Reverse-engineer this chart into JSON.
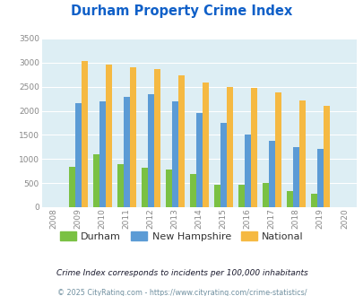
{
  "title": "Durham Property Crime Index",
  "title_color": "#1060c8",
  "years": [
    "08",
    "09",
    "10",
    "11",
    "12",
    "13",
    "14",
    "15",
    "16",
    "17",
    "18",
    "19",
    "20"
  ],
  "data_years": [
    "09",
    "10",
    "11",
    "12",
    "13",
    "14",
    "15",
    "16",
    "17",
    "18",
    "19"
  ],
  "durham": [
    830,
    1090,
    900,
    820,
    780,
    680,
    470,
    460,
    510,
    340,
    280
  ],
  "new_hampshire": [
    2150,
    2190,
    2290,
    2350,
    2190,
    1960,
    1750,
    1500,
    1380,
    1240,
    1210
  ],
  "national": [
    3040,
    2960,
    2910,
    2870,
    2730,
    2590,
    2500,
    2480,
    2380,
    2210,
    2110
  ],
  "durham_color": "#7ac143",
  "nh_color": "#5b9bd5",
  "national_color": "#f5b942",
  "bg_color": "#ddeef4",
  "ylim": [
    0,
    3500
  ],
  "yticks": [
    0,
    500,
    1000,
    1500,
    2000,
    2500,
    3000,
    3500
  ],
  "legend_labels": [
    "Durham",
    "New Hampshire",
    "National"
  ],
  "footnote1": "Crime Index corresponds to incidents per 100,000 inhabitants",
  "footnote2": "© 2025 CityRating.com - https://www.cityrating.com/crime-statistics/",
  "footnote1_color": "#1a1a2e",
  "footnote2_color": "#7090a0"
}
